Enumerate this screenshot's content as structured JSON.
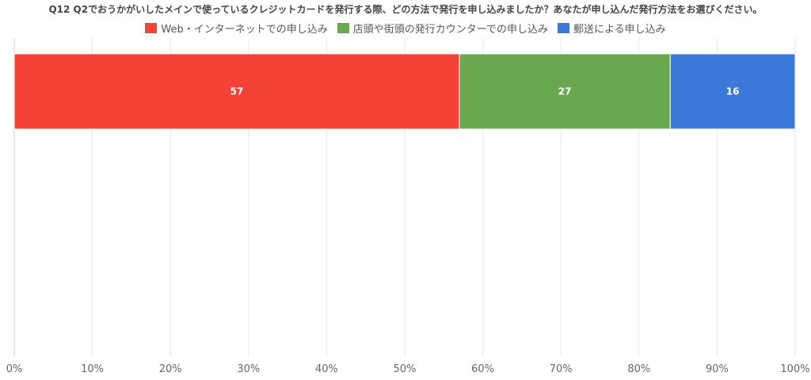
{
  "chart_data": {
    "type": "bar",
    "orientation": "horizontal",
    "stacked": true,
    "title": "Q12 Q2でおうかがいしたメインで使っているクレジットカードを発行する際、どの方法で発行を申し込みましたか？あなたが申し込んだ発行方法をお選びください。",
    "xlabel": "",
    "ylabel": "",
    "xlim": [
      0,
      100
    ],
    "x_ticks": [
      "0%",
      "10%",
      "20%",
      "30%",
      "40%",
      "50%",
      "60%",
      "70%",
      "80%",
      "90%",
      "100%"
    ],
    "grid": true,
    "legend_position": "top",
    "categories": [
      ""
    ],
    "series": [
      {
        "name": "Web・インターネットでの申し込み",
        "values": [
          57
        ],
        "color": "#f44336"
      },
      {
        "name": "店頭や街頭の発行カウンターでの申し込み",
        "values": [
          27
        ],
        "color": "#6aa84f"
      },
      {
        "name": "郵送による申し込み",
        "values": [
          16
        ],
        "color": "#3c78d8"
      }
    ]
  }
}
